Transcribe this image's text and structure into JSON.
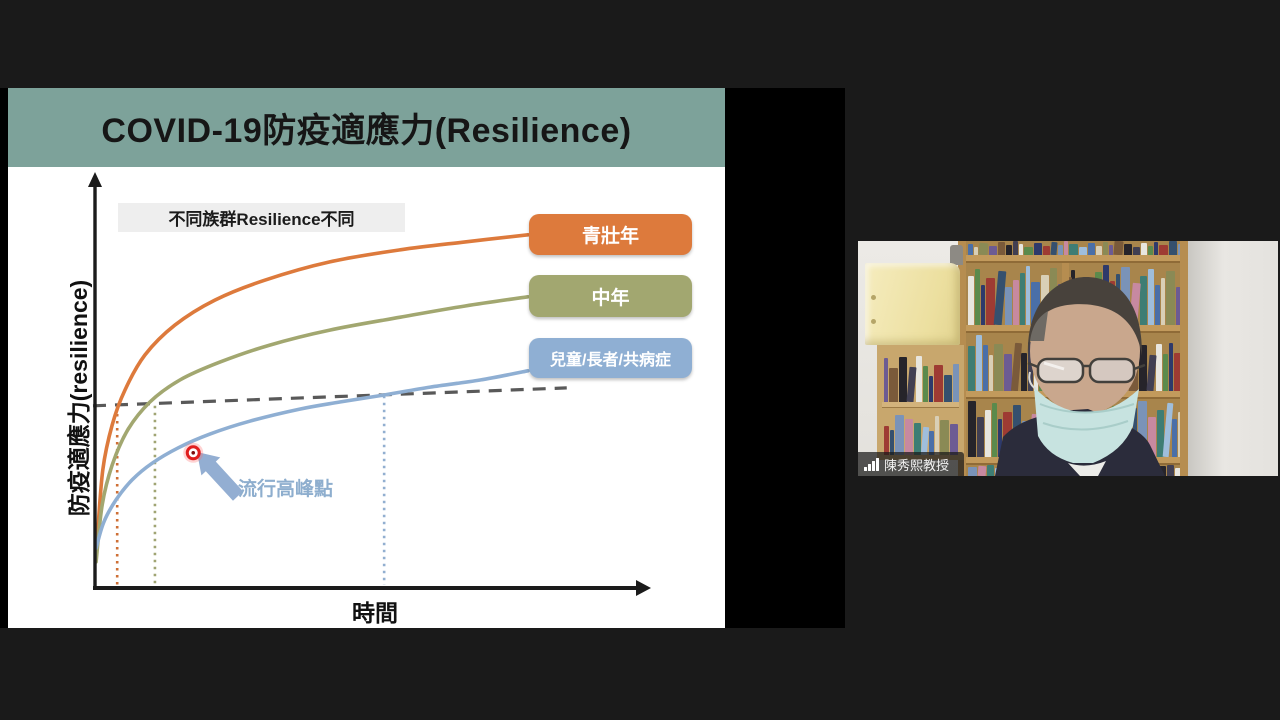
{
  "app": {
    "background_color": "#1a1a1a",
    "screenshare_background": "#000000"
  },
  "slide": {
    "title": "COVID-19防疫適應力(Resilience)",
    "header_color": "#7da29a",
    "background": "#ffffff",
    "annotation_box": "不同族群Resilience不同",
    "x_axis_label": "時間",
    "y_axis_label": "防疫適應力(resilience)",
    "peak_label": "流行高峰點",
    "legend": [
      {
        "label": "青壯年",
        "color": "#dd7a3c"
      },
      {
        "label": "中年",
        "color": "#a2a770"
      },
      {
        "label": "兒童/長者/共病症",
        "color": "#8fafd3"
      }
    ]
  },
  "chart_data": {
    "type": "line",
    "title": "COVID-19防疫適應力(Resilience)",
    "xlabel": "時間",
    "ylabel": "防疫適應力(resilience)",
    "axes_numeric": false,
    "x_range_normalized": [
      0,
      1
    ],
    "y_range_normalized": [
      0,
      1
    ],
    "gridlines": false,
    "legend_position": "right",
    "annotations": [
      "不同族群Resilience不同",
      "流行高峰點"
    ],
    "series": [
      {
        "name": "青壯年",
        "color": "#dd7a3c",
        "points": [
          [
            0.004,
            0.115
          ],
          [
            0.014,
            0.284
          ],
          [
            0.031,
            0.392
          ],
          [
            0.054,
            0.476
          ],
          [
            0.09,
            0.56
          ],
          [
            0.144,
            0.632
          ],
          [
            0.216,
            0.692
          ],
          [
            0.306,
            0.74
          ],
          [
            0.423,
            0.784
          ],
          [
            0.55,
            0.813
          ],
          [
            0.667,
            0.832
          ],
          [
            0.78,
            0.849
          ]
        ]
      },
      {
        "name": "中年",
        "color": "#a2a770",
        "points": [
          [
            0.002,
            0.063
          ],
          [
            0.013,
            0.2
          ],
          [
            0.031,
            0.296
          ],
          [
            0.059,
            0.38
          ],
          [
            0.099,
            0.447
          ],
          [
            0.153,
            0.5
          ],
          [
            0.225,
            0.543
          ],
          [
            0.315,
            0.584
          ],
          [
            0.423,
            0.62
          ],
          [
            0.55,
            0.651
          ],
          [
            0.667,
            0.678
          ],
          [
            0.78,
            0.7
          ]
        ]
      },
      {
        "name": "兒童/長者/共病症",
        "color": "#8fafd3",
        "points": [
          [
            0.002,
            0.096
          ],
          [
            0.016,
            0.159
          ],
          [
            0.038,
            0.212
          ],
          [
            0.067,
            0.26
          ],
          [
            0.103,
            0.3
          ],
          [
            0.15,
            0.337
          ],
          [
            0.207,
            0.37
          ],
          [
            0.279,
            0.401
          ],
          [
            0.369,
            0.43
          ],
          [
            0.441,
            0.447
          ],
          [
            0.521,
            0.464
          ],
          [
            0.604,
            0.483
          ],
          [
            0.694,
            0.5
          ],
          [
            0.78,
            0.522
          ]
        ]
      }
    ],
    "threshold_dashed_line": {
      "color": "#595959",
      "points": [
        [
          0.0,
          0.438
        ],
        [
          0.85,
          0.481
        ]
      ]
    },
    "event_marker": {
      "label": "流行高峰點",
      "series": "兒童/長者/共病症",
      "point": [
        0.177,
        0.325
      ],
      "color": "#e01f1f",
      "arrow_color": "#93aed2"
    },
    "dotted_verticals": [
      {
        "series": "青壯年",
        "x": 0.04,
        "y_top": 0.435,
        "color": "#ce6f35"
      },
      {
        "series": "中年",
        "x": 0.108,
        "y_top": 0.438,
        "color": "#a0a473"
      },
      {
        "series": "兒童/長者/共病症",
        "x": 0.521,
        "y_top": 0.462,
        "color": "#92afd0"
      }
    ]
  },
  "video": {
    "participant_name": "陳秀熙教授",
    "signal_icon": "signal-bars-icon",
    "book_colors": [
      "#2e3a6b",
      "#4a6fa8",
      "#e8e6df",
      "#3e7d74",
      "#26242a",
      "#7a93b8",
      "#6c5b93",
      "#9e3b33",
      "#d9cfb6",
      "#5b8a4c",
      "#9fbedc",
      "#413f52",
      "#c789a0",
      "#7a5a3a",
      "#35506e",
      "#8a8a55"
    ],
    "scene": {
      "wall": "#e7e5e1",
      "cabinet": "#efe6ae",
      "wood": "#b68d50",
      "wood_light": "#c8a76d",
      "suit": "#2b2c3b",
      "mask": "#c7e3e0",
      "skin": "#c9a78d",
      "hair": "#48423c",
      "shirt": "#ecece8"
    }
  }
}
